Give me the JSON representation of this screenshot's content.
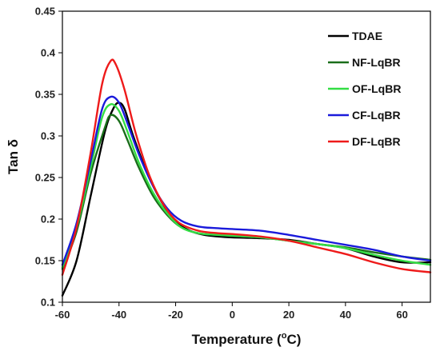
{
  "chart_data": {
    "type": "line",
    "xlabel_main": "Temperature (",
    "xlabel_sup": "o",
    "xlabel_end": "C)",
    "ylabel": "Tan δ",
    "xlim": [
      -60,
      70
    ],
    "ylim": [
      0.1,
      0.45
    ],
    "x_ticks": [
      -60,
      -40,
      -20,
      0,
      20,
      40,
      60
    ],
    "x_tick_labels": [
      "-60",
      "-40",
      "-20",
      "0",
      "20",
      "40",
      "60"
    ],
    "y_ticks": [
      0.1,
      0.15,
      0.2,
      0.25,
      0.3,
      0.35,
      0.4,
      0.45
    ],
    "y_tick_labels": [
      "0.1",
      "0.15",
      "0.2",
      "0.25",
      "0.3",
      "0.35",
      "0.4",
      "0.45"
    ],
    "grid": false,
    "legend_position": "top-right",
    "series": [
      {
        "name": "TDAE",
        "color": "#000000",
        "points": [
          [
            -60,
            0.108
          ],
          [
            -55,
            0.15
          ],
          [
            -50,
            0.228
          ],
          [
            -45,
            0.305
          ],
          [
            -42,
            0.333
          ],
          [
            -40,
            0.34
          ],
          [
            -38,
            0.332
          ],
          [
            -35,
            0.3
          ],
          [
            -30,
            0.255
          ],
          [
            -25,
            0.221
          ],
          [
            -20,
            0.197
          ],
          [
            -15,
            0.186
          ],
          [
            -10,
            0.181
          ],
          [
            -5,
            0.179
          ],
          [
            0,
            0.178
          ],
          [
            10,
            0.177
          ],
          [
            20,
            0.175
          ],
          [
            30,
            0.17
          ],
          [
            40,
            0.165
          ],
          [
            50,
            0.155
          ],
          [
            60,
            0.148
          ],
          [
            70,
            0.148
          ]
        ]
      },
      {
        "name": "NF-LqBR",
        "color": "#1a6e1a",
        "points": [
          [
            -60,
            0.14
          ],
          [
            -55,
            0.185
          ],
          [
            -50,
            0.255
          ],
          [
            -45,
            0.31
          ],
          [
            -43,
            0.325
          ],
          [
            -40,
            0.318
          ],
          [
            -37,
            0.295
          ],
          [
            -33,
            0.262
          ],
          [
            -28,
            0.228
          ],
          [
            -23,
            0.205
          ],
          [
            -18,
            0.19
          ],
          [
            -12,
            0.183
          ],
          [
            -5,
            0.181
          ],
          [
            0,
            0.18
          ],
          [
            10,
            0.178
          ],
          [
            20,
            0.174
          ],
          [
            30,
            0.17
          ],
          [
            40,
            0.166
          ],
          [
            50,
            0.16
          ],
          [
            60,
            0.155
          ],
          [
            70,
            0.151
          ]
        ]
      },
      {
        "name": "OF-LqBR",
        "color": "#33dd44",
        "points": [
          [
            -60,
            0.142
          ],
          [
            -55,
            0.19
          ],
          [
            -50,
            0.262
          ],
          [
            -46,
            0.322
          ],
          [
            -43,
            0.338
          ],
          [
            -40,
            0.33
          ],
          [
            -37,
            0.305
          ],
          [
            -33,
            0.268
          ],
          [
            -28,
            0.232
          ],
          [
            -23,
            0.207
          ],
          [
            -18,
            0.19
          ],
          [
            -12,
            0.183
          ],
          [
            -5,
            0.181
          ],
          [
            0,
            0.18
          ],
          [
            10,
            0.178
          ],
          [
            20,
            0.174
          ],
          [
            30,
            0.17
          ],
          [
            40,
            0.165
          ],
          [
            50,
            0.157
          ],
          [
            60,
            0.15
          ],
          [
            70,
            0.145
          ]
        ]
      },
      {
        "name": "CF-LqBR",
        "color": "#1a1adb",
        "points": [
          [
            -60,
            0.145
          ],
          [
            -55,
            0.195
          ],
          [
            -50,
            0.27
          ],
          [
            -46,
            0.332
          ],
          [
            -43,
            0.347
          ],
          [
            -40,
            0.34
          ],
          [
            -37,
            0.315
          ],
          [
            -33,
            0.278
          ],
          [
            -28,
            0.24
          ],
          [
            -23,
            0.213
          ],
          [
            -18,
            0.198
          ],
          [
            -12,
            0.191
          ],
          [
            -5,
            0.189
          ],
          [
            0,
            0.188
          ],
          [
            10,
            0.186
          ],
          [
            20,
            0.181
          ],
          [
            30,
            0.175
          ],
          [
            40,
            0.169
          ],
          [
            50,
            0.163
          ],
          [
            60,
            0.155
          ],
          [
            70,
            0.15
          ]
        ]
      },
      {
        "name": "DF-LqBR",
        "color": "#ee1a1a",
        "points": [
          [
            -60,
            0.133
          ],
          [
            -55,
            0.19
          ],
          [
            -50,
            0.28
          ],
          [
            -46,
            0.362
          ],
          [
            -43,
            0.39
          ],
          [
            -41,
            0.385
          ],
          [
            -38,
            0.355
          ],
          [
            -34,
            0.302
          ],
          [
            -29,
            0.25
          ],
          [
            -24,
            0.216
          ],
          [
            -19,
            0.196
          ],
          [
            -12,
            0.186
          ],
          [
            -5,
            0.183
          ],
          [
            0,
            0.182
          ],
          [
            10,
            0.179
          ],
          [
            20,
            0.174
          ],
          [
            30,
            0.166
          ],
          [
            40,
            0.158
          ],
          [
            50,
            0.148
          ],
          [
            60,
            0.14
          ],
          [
            70,
            0.136
          ]
        ]
      }
    ]
  }
}
